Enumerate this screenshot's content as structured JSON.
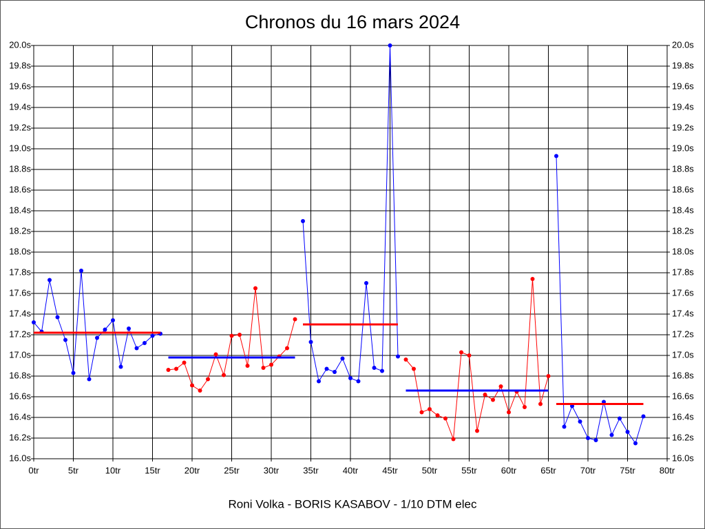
{
  "chart_data": {
    "type": "line",
    "title": "Chronos du 16 mars 2024",
    "subtitle": "Roni Volka - BORIS KASABOV - 1/10 DTM elec",
    "xlim": [
      0,
      80
    ],
    "xticks": [
      {
        "value": 0,
        "label": "0tr"
      },
      {
        "value": 5,
        "label": "5tr"
      },
      {
        "value": 10,
        "label": "10tr"
      },
      {
        "value": 15,
        "label": "15tr"
      },
      {
        "value": 20,
        "label": "20tr"
      },
      {
        "value": 25,
        "label": "25tr"
      },
      {
        "value": 30,
        "label": "30tr"
      },
      {
        "value": 35,
        "label": "35tr"
      },
      {
        "value": 40,
        "label": "40tr"
      },
      {
        "value": 45,
        "label": "45tr"
      },
      {
        "value": 50,
        "label": "50tr"
      },
      {
        "value": 55,
        "label": "55tr"
      },
      {
        "value": 60,
        "label": "60tr"
      },
      {
        "value": 65,
        "label": "65tr"
      },
      {
        "value": 70,
        "label": "70tr"
      },
      {
        "value": 75,
        "label": "75tr"
      },
      {
        "value": 80,
        "label": "80tr"
      }
    ],
    "ylim": [
      16.0,
      20.0
    ],
    "yticks": [
      {
        "value": 16.0,
        "label": "16.0s"
      },
      {
        "value": 16.2,
        "label": "16.2s"
      },
      {
        "value": 16.4,
        "label": "16.4s"
      },
      {
        "value": 16.6,
        "label": "16.6s"
      },
      {
        "value": 16.8,
        "label": "16.8s"
      },
      {
        "value": 17.0,
        "label": "17.0s"
      },
      {
        "value": 17.2,
        "label": "17.2s"
      },
      {
        "value": 17.4,
        "label": "17.4s"
      },
      {
        "value": 17.6,
        "label": "17.6s"
      },
      {
        "value": 17.8,
        "label": "17.8s"
      },
      {
        "value": 18.0,
        "label": "18.0s"
      },
      {
        "value": 18.2,
        "label": "18.2s"
      },
      {
        "value": 18.4,
        "label": "18.4s"
      },
      {
        "value": 18.6,
        "label": "18.6s"
      },
      {
        "value": 18.8,
        "label": "18.8s"
      },
      {
        "value": 19.0,
        "label": "19.0s"
      },
      {
        "value": 19.2,
        "label": "19.2s"
      },
      {
        "value": 19.4,
        "label": "19.4s"
      },
      {
        "value": 19.6,
        "label": "19.6s"
      },
      {
        "value": 19.8,
        "label": "19.8s"
      },
      {
        "value": 20.0,
        "label": "20.0s"
      }
    ],
    "grid": true,
    "series": [
      {
        "color": "#0000ff",
        "average_color": "#ff0000",
        "average": 17.22,
        "x": [
          0,
          1,
          2,
          3,
          4,
          5,
          6,
          7,
          8,
          9,
          10,
          11,
          12,
          13,
          14,
          15,
          16
        ],
        "values": [
          17.32,
          17.23,
          17.73,
          17.37,
          17.15,
          16.83,
          17.82,
          16.77,
          17.17,
          17.25,
          17.34,
          16.89,
          17.26,
          17.07,
          17.12,
          17.19,
          17.21
        ]
      },
      {
        "color": "#ff0000",
        "average_color": "#0000ff",
        "average": 16.98,
        "x": [
          17,
          18,
          19,
          20,
          21,
          22,
          23,
          24,
          25,
          26,
          27,
          28,
          29,
          30,
          31,
          32,
          33
        ],
        "values": [
          16.86,
          16.87,
          16.93,
          16.71,
          16.66,
          16.77,
          17.01,
          16.81,
          17.19,
          17.2,
          16.9,
          17.65,
          16.88,
          16.91,
          16.99,
          17.07,
          17.35
        ]
      },
      {
        "color": "#0000ff",
        "average_color": "#ff0000",
        "average": 17.3,
        "x": [
          34,
          35,
          36,
          37,
          38,
          39,
          40,
          41,
          42,
          43,
          44,
          45,
          46
        ],
        "values": [
          18.3,
          17.13,
          16.75,
          16.87,
          16.84,
          16.97,
          16.78,
          16.75,
          17.7,
          16.88,
          16.85,
          20.0,
          16.99
        ]
      },
      {
        "color": "#ff0000",
        "average_color": "#0000ff",
        "average": 16.66,
        "x": [
          47,
          48,
          49,
          50,
          51,
          52,
          53,
          54,
          55,
          56,
          57,
          58,
          59,
          60,
          61,
          62,
          63,
          64,
          65
        ],
        "values": [
          16.96,
          16.87,
          16.45,
          16.48,
          16.42,
          16.39,
          16.19,
          17.03,
          17.0,
          16.27,
          16.62,
          16.57,
          16.7,
          16.45,
          16.65,
          16.5,
          17.74,
          16.53,
          16.8
        ]
      },
      {
        "color": "#0000ff",
        "average_color": "#ff0000",
        "average": 16.53,
        "x": [
          66,
          67,
          68,
          69,
          70,
          71,
          72,
          73,
          74,
          75,
          76,
          77
        ],
        "values": [
          18.93,
          16.31,
          16.51,
          16.36,
          16.2,
          16.18,
          16.55,
          16.23,
          16.39,
          16.26,
          16.15,
          16.41
        ]
      }
    ]
  }
}
